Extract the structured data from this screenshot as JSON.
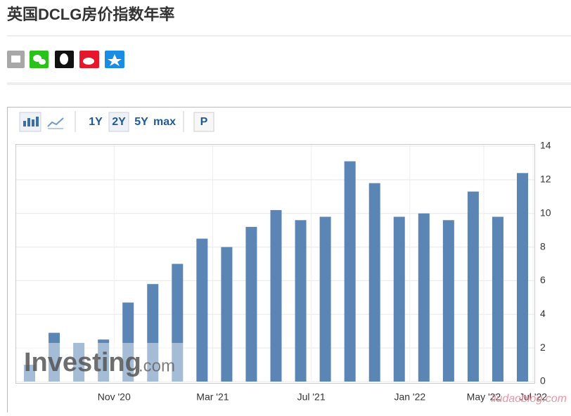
{
  "header": {
    "title": "英国DCLG房价指数年率"
  },
  "toolbar": {
    "buttons": [
      "1Y",
      "2Y",
      "5Y",
      "max",
      "P"
    ]
  },
  "watermark": {
    "brand": "Investing",
    "domain": ".com",
    "blog": "liudaoblog.com"
  },
  "chart_data": {
    "type": "bar",
    "categories": [
      null,
      null,
      null,
      "Nov '20",
      null,
      null,
      null,
      "Mar '21",
      null,
      null,
      null,
      "Jul '21",
      null,
      null,
      null,
      "Jan '22",
      null,
      null,
      "May '22",
      null,
      "Jul '22"
    ],
    "values": [
      1.0,
      2.9,
      2.3,
      2.5,
      4.7,
      5.8,
      7.0,
      8.5,
      8.0,
      9.2,
      10.2,
      9.6,
      9.8,
      13.1,
      11.8,
      9.8,
      10.0,
      9.6,
      11.3,
      9.8,
      12.4
    ],
    "color": "#5b85b4",
    "ylim": [
      0,
      14
    ],
    "yticks": [
      0,
      2,
      4,
      6,
      8,
      10,
      12,
      14
    ],
    "grid": true
  }
}
